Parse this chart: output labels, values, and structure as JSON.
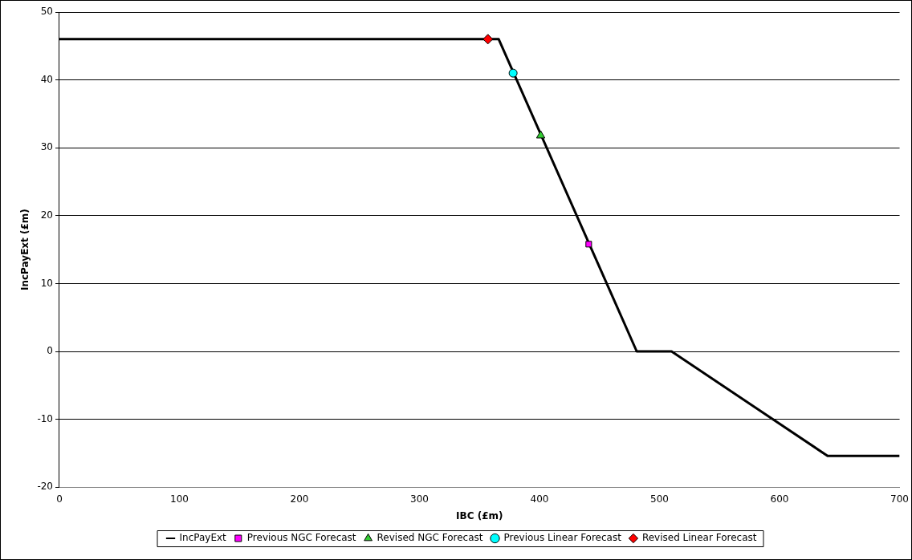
{
  "chart_data": {
    "type": "line",
    "xlabel": "IBC (£m)",
    "ylabel": "IncPayExt (£m)",
    "xlim": [
      0,
      700
    ],
    "xticks": [
      0,
      100,
      200,
      300,
      400,
      500,
      600,
      700
    ],
    "ylim": [
      -20,
      50
    ],
    "yticks": [
      -20,
      -10,
      0,
      10,
      20,
      30,
      40,
      50
    ],
    "grid": "y",
    "legend": "bottom",
    "series": [
      {
        "name": "IncPayExt",
        "type": "line",
        "color": "#000000",
        "marker": "none",
        "line_style": "solid",
        "x": [
          0,
          366,
          481,
          510,
          640,
          700
        ],
        "values": [
          46,
          46,
          0,
          0,
          -15.4,
          -15.4
        ]
      },
      {
        "name": "Previous NGC Forecast",
        "type": "scatter",
        "color": "#ff00ff",
        "marker": "square",
        "x": [
          441
        ],
        "values": [
          15.8
        ]
      },
      {
        "name": "Revised NGC Forecast",
        "type": "scatter",
        "color": "#33cc33",
        "marker": "triangle",
        "x": [
          401
        ],
        "values": [
          31.8
        ]
      },
      {
        "name": "Previous Linear Forecast",
        "type": "scatter",
        "color": "#00ffff",
        "marker": "circle",
        "x": [
          378
        ],
        "values": [
          41
        ]
      },
      {
        "name": "Revised Linear Forecast",
        "type": "scatter",
        "color": "#ff0000",
        "marker": "diamond",
        "x": [
          357
        ],
        "values": [
          46
        ]
      }
    ]
  }
}
